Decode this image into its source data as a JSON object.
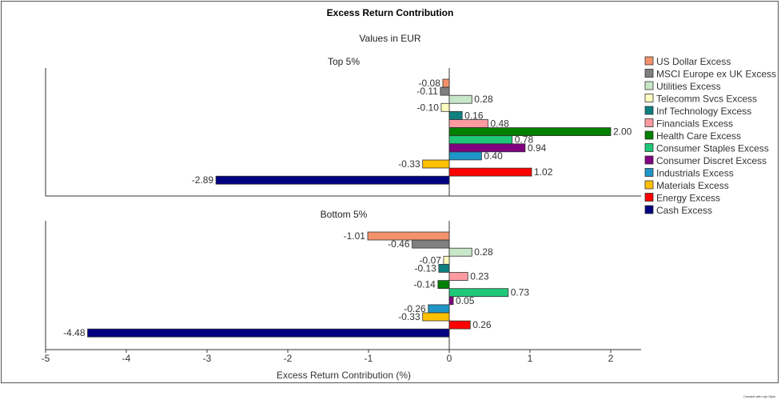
{
  "chart_data": {
    "type": "bar",
    "orientation": "horizontal",
    "title": "Excess Return Contribution",
    "subtitle": "Values in EUR",
    "xlabel": "Excess Return Contribution (%)",
    "xlim": [
      -5,
      2.4
    ],
    "xticks": [
      -5,
      -4,
      -3,
      -2,
      -1,
      0,
      1,
      2
    ],
    "legend_position": "right",
    "categories": [
      "US Dollar Excess",
      "MSCI Europe ex UK Excess",
      "Utilities Excess",
      "Telecomm Svcs Excess",
      "Inf Technology Excess",
      "Financials Excess",
      "Health Care Excess",
      "Consumer Staples Excess",
      "Consumer Discret Excess",
      "Industrials Excess",
      "Materials Excess",
      "Energy Excess",
      "Cash Excess"
    ],
    "colors": [
      "#f4926c",
      "#808080",
      "#c8e6c8",
      "#ffffc0",
      "#0f8080",
      "#ff9aa0",
      "#008000",
      "#1ec878",
      "#800080",
      "#1e96c8",
      "#ffc000",
      "#ff0000",
      "#000080"
    ],
    "panels": [
      {
        "name": "Top 5%",
        "values": [
          -0.08,
          -0.11,
          0.28,
          -0.1,
          0.16,
          0.48,
          2.0,
          0.78,
          0.94,
          0.4,
          -0.33,
          1.02,
          -2.89
        ],
        "value_labels": [
          "-0.08",
          "-0.11",
          "0.28",
          "-0.10",
          "0.16",
          "0.48",
          "2.00",
          "0.78",
          "0.94",
          "0.40",
          "-0.33",
          "1.02",
          "-2.89"
        ]
      },
      {
        "name": "Bottom 5%",
        "values": [
          -1.01,
          -0.46,
          0.28,
          -0.07,
          -0.13,
          0.23,
          -0.14,
          0.73,
          0.05,
          -0.26,
          -0.33,
          0.26,
          -4.48
        ],
        "value_labels": [
          "-1.01",
          "-0.46",
          "0.28",
          "-0.07",
          "-0.13",
          "0.23",
          "-0.14",
          "0.73",
          "0.05",
          "-0.26",
          "-0.33",
          "0.26",
          "-4.48"
        ]
      }
    ]
  },
  "footer": "Created with mpl Style"
}
